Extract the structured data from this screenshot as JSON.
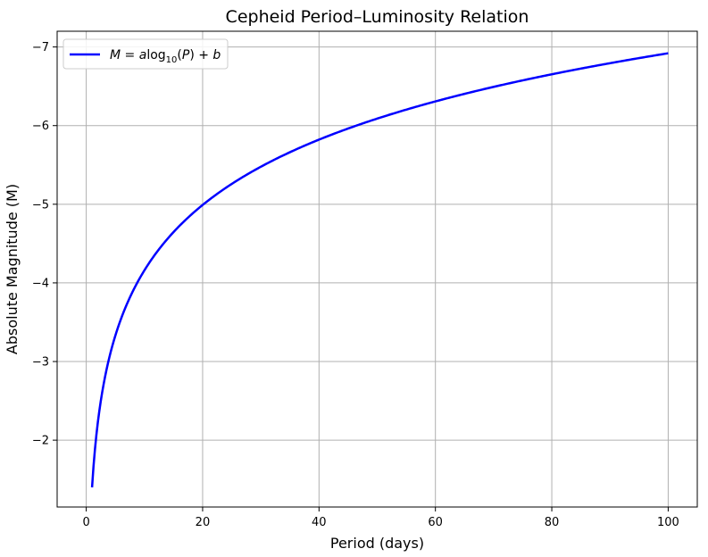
{
  "chart_data": {
    "type": "line",
    "title": "Cepheid Period–Luminosity Relation",
    "xlabel": "Period (days)",
    "ylabel": "Absolute Magnitude (M)",
    "xlim": [
      -5,
      105
    ],
    "ylim": [
      -1.15,
      -7.2
    ],
    "y_inverted": true,
    "grid": true,
    "legend": {
      "placement": "top-left"
    },
    "x_ticks": [
      0,
      20,
      40,
      60,
      80,
      100
    ],
    "x_tick_labels": [
      "0",
      "20",
      "40",
      "60",
      "80",
      "100"
    ],
    "y_ticks": [
      -2,
      -3,
      -4,
      -5,
      -6,
      -7
    ],
    "y_tick_labels": [
      "−2",
      "−3",
      "−4",
      "−5",
      "−6",
      "−7"
    ],
    "series": [
      {
        "legend_parts": [
          "M",
          " = ",
          "a",
          "log",
          "10",
          "(",
          "P",
          ") + ",
          "b"
        ],
        "color": "#0000ff",
        "x_range": [
          1,
          100
        ],
        "coefficients": {
          "a": -2.76,
          "b": -1.4
        },
        "x": [
          1,
          2,
          3,
          5,
          10,
          20,
          30,
          40,
          60,
          80,
          100
        ],
        "y": [
          -1.4,
          -2.23,
          -2.72,
          -3.33,
          -4.16,
          -4.99,
          -5.48,
          -5.82,
          -6.31,
          -6.65,
          -6.92
        ]
      }
    ]
  }
}
